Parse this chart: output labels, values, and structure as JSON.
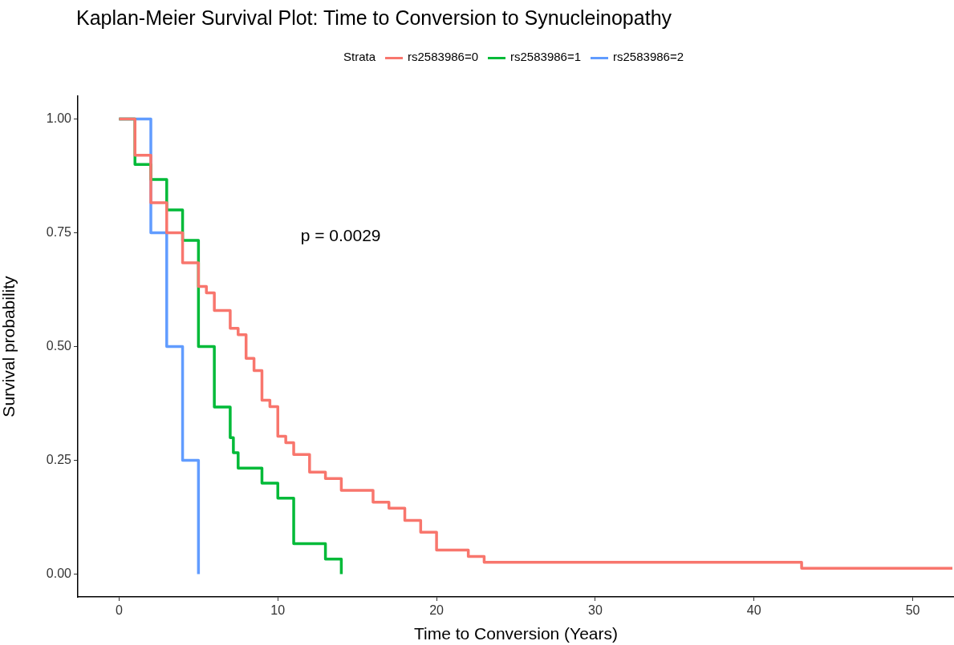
{
  "chart_data": {
    "type": "step",
    "title": "Kaplan-Meier Survival Plot: Time to Conversion to Synucleinopathy",
    "xlabel": "Time to Conversion (Years)",
    "ylabel": "Survival probability",
    "legend_title": "Strata",
    "legend": "top",
    "grid": false,
    "line_style": "solid",
    "xlim": [
      -2.6,
      52.6
    ],
    "xticks": [
      0,
      10,
      20,
      30,
      40,
      50
    ],
    "ylim": [
      -0.05,
      1.05
    ],
    "yticks": [
      {
        "value": 0,
        "label": "0.00"
      },
      {
        "value": 0.25,
        "label": "0.25"
      },
      {
        "value": 0.5,
        "label": "0.50"
      },
      {
        "value": 0.75,
        "label": "0.75"
      },
      {
        "value": 1,
        "label": "1.00"
      }
    ],
    "annotations": [
      "p = 0.0029"
    ],
    "series": [
      {
        "name": "rs2583986=0",
        "color": "#f8766d",
        "x": [
          0,
          1,
          2,
          3,
          4,
          5,
          5.5,
          6,
          7,
          7.5,
          8,
          8.5,
          9,
          9.5,
          10,
          10.5,
          11,
          12,
          13,
          14,
          16,
          17,
          18,
          19,
          20,
          22,
          23,
          43,
          52.5
        ],
        "values": [
          1,
          0.92,
          0.816,
          0.75,
          0.684,
          0.632,
          0.618,
          0.579,
          0.54,
          0.526,
          0.474,
          0.447,
          0.382,
          0.368,
          0.303,
          0.289,
          0.263,
          0.224,
          0.21,
          0.184,
          0.158,
          0.145,
          0.118,
          0.092,
          0.053,
          0.039,
          0.026,
          0.013,
          0.013
        ]
      },
      {
        "name": "rs2583986=1",
        "color": "#00ba38",
        "x": [
          0,
          1,
          2,
          3,
          4,
          5,
          6,
          7,
          7.2,
          7.5,
          9,
          10,
          11,
          13,
          14
        ],
        "values": [
          1,
          0.9,
          0.867,
          0.8,
          0.733,
          0.5,
          0.367,
          0.3,
          0.267,
          0.233,
          0.2,
          0.167,
          0.067,
          0.033,
          0
        ]
      },
      {
        "name": "rs2583986=2",
        "color": "#619cff",
        "x": [
          0,
          2,
          3,
          4,
          5
        ],
        "values": [
          1,
          0.75,
          0.5,
          0.25,
          0
        ]
      }
    ]
  }
}
